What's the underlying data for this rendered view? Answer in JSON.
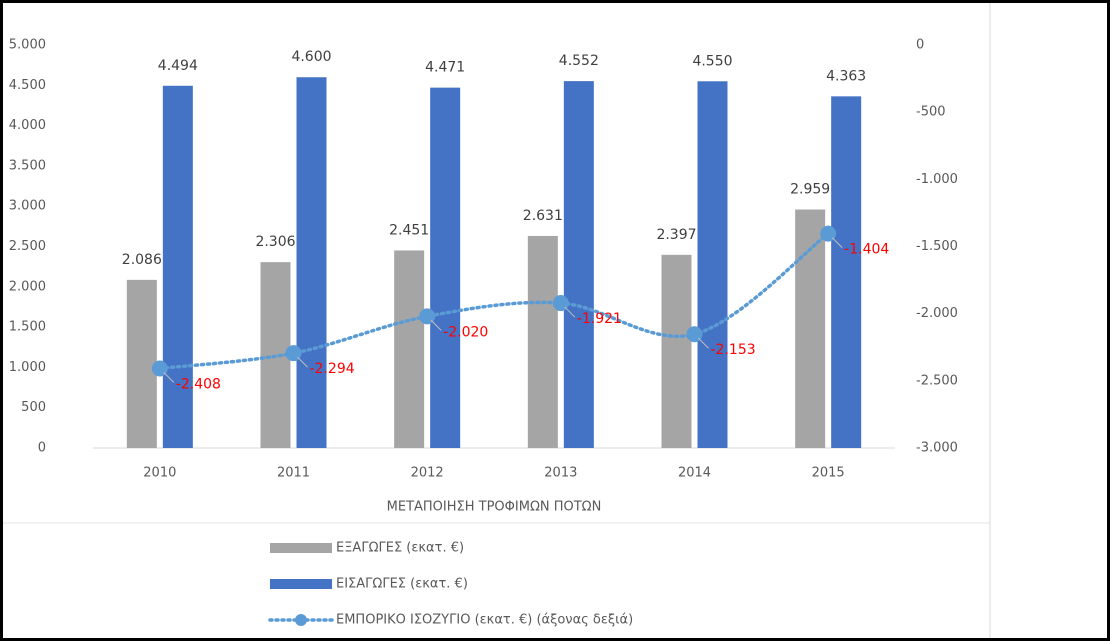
{
  "chart_data": {
    "type": "bar",
    "x_label": "ΜΕΤΑΠΟΙΗΣΗ ΤΡΟΦΙΜΩΝ ΠΟΤΩΝ",
    "categories": [
      "2010",
      "2011",
      "2012",
      "2013",
      "2014",
      "2015"
    ],
    "series": [
      {
        "name": "ΕΞΑΓΩΓΕΣ (εκατ. €)",
        "type": "bar",
        "color": "#a5a5a5",
        "values": [
          2086,
          2306,
          2451,
          2631,
          2397,
          2959
        ],
        "value_labels": [
          "2.086",
          "2.306",
          "2.451",
          "2.631",
          "2.397",
          "2.959"
        ]
      },
      {
        "name": "ΕΙΣΑΓΩΓΕΣ (εκατ. €)",
        "type": "bar",
        "color": "#4472c4",
        "values": [
          4494,
          4600,
          4471,
          4552,
          4550,
          4363
        ],
        "value_labels": [
          "4.494",
          "4.600",
          "4.471",
          "4.552",
          "4.550",
          "4.363"
        ]
      },
      {
        "name": "ΕΜΠΟΡΙΚΟ ΙΣΟΖΥΓΙΟ (εκατ. €)  (άξονας δεξιά)",
        "type": "line",
        "axis": "y2",
        "color": "#5b9bd5",
        "label_color": "#ff0000",
        "values": [
          -2408,
          -2294,
          -2020,
          -1921,
          -2153,
          -1404
        ],
        "value_labels": [
          "-2.408",
          "-2.294",
          "-2.020",
          "-1.921",
          "-2.153",
          "-1.404"
        ]
      }
    ],
    "ylim": [
      0,
      5000
    ],
    "yticks": [
      0,
      500,
      {
        "value": 1000,
        "label": "1.000"
      },
      {
        "value": 1500,
        "label": "1.500"
      },
      {
        "value": 2000,
        "label": "2.000"
      },
      {
        "value": 2500,
        "label": "2.500"
      },
      {
        "value": 3000,
        "label": "3.000"
      },
      {
        "value": 3500,
        "label": "3.500"
      },
      {
        "value": 4000,
        "label": "4.000"
      },
      {
        "value": 4500,
        "label": "4.500"
      },
      {
        "value": 5000,
        "label": "5.000"
      }
    ],
    "y2lim": [
      -3000,
      0
    ],
    "y2ticks": [
      {
        "value": -3000,
        "label": "-3.000"
      },
      {
        "value": -2500,
        "label": "-2.500"
      },
      {
        "value": -2000,
        "label": "-2.000"
      },
      {
        "value": -1500,
        "label": "-1.500"
      },
      {
        "value": -1000,
        "label": "-1.000"
      },
      -500,
      0
    ],
    "grid": false,
    "legend": "bottom"
  }
}
